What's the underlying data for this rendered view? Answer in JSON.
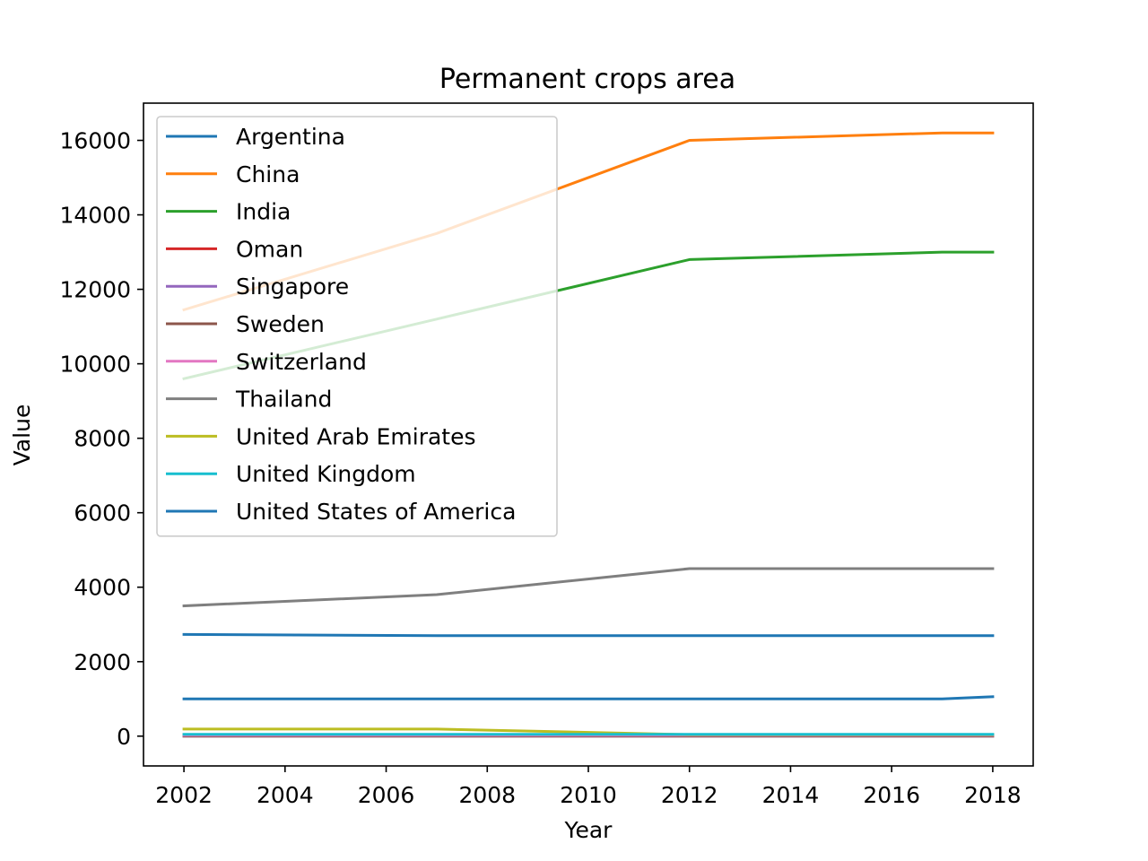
{
  "chart_data": {
    "type": "line",
    "title": "Permanent crops area",
    "xlabel": "Year",
    "ylabel": "Value",
    "x": [
      2002,
      2007,
      2012,
      2017,
      2018
    ],
    "xlim": [
      2001.2,
      2018.8
    ],
    "ylim": [
      -800,
      17000
    ],
    "xticks": [
      2002,
      2004,
      2006,
      2008,
      2010,
      2012,
      2014,
      2016,
      2018
    ],
    "yticks": [
      0,
      2000,
      4000,
      6000,
      8000,
      10000,
      12000,
      14000,
      16000
    ],
    "grid": false,
    "legend": "upper-left",
    "series": [
      {
        "name": "Argentina",
        "color": "#1f77b4",
        "values": [
          1000,
          1000,
          1000,
          1000,
          1060
        ]
      },
      {
        "name": "China",
        "color": "#ff7f0e",
        "values": [
          11450,
          13500,
          16000,
          16200,
          16200
        ]
      },
      {
        "name": "India",
        "color": "#2ca02c",
        "values": [
          9600,
          11200,
          12800,
          13000,
          13000
        ]
      },
      {
        "name": "Oman",
        "color": "#d62728",
        "values": [
          40,
          40,
          40,
          40,
          40
        ]
      },
      {
        "name": "Singapore",
        "color": "#9467bd",
        "values": [
          1,
          1,
          1,
          1,
          1
        ]
      },
      {
        "name": "Sweden",
        "color": "#8c564b",
        "values": [
          3,
          3,
          3,
          3,
          3
        ]
      },
      {
        "name": "Switzerland",
        "color": "#e377c2",
        "values": [
          24,
          24,
          24,
          24,
          24
        ]
      },
      {
        "name": "Thailand",
        "color": "#7f7f7f",
        "values": [
          3500,
          3800,
          4500,
          4500,
          4500
        ]
      },
      {
        "name": "United Arab Emirates",
        "color": "#bcbd22",
        "values": [
          190,
          190,
          40,
          40,
          40
        ]
      },
      {
        "name": "United Kingdom",
        "color": "#17becf",
        "values": [
          50,
          50,
          50,
          50,
          50
        ]
      },
      {
        "name": "United States of America",
        "color": "#1f77b4",
        "values": [
          2730,
          2700,
          2700,
          2700,
          2700
        ]
      }
    ]
  }
}
